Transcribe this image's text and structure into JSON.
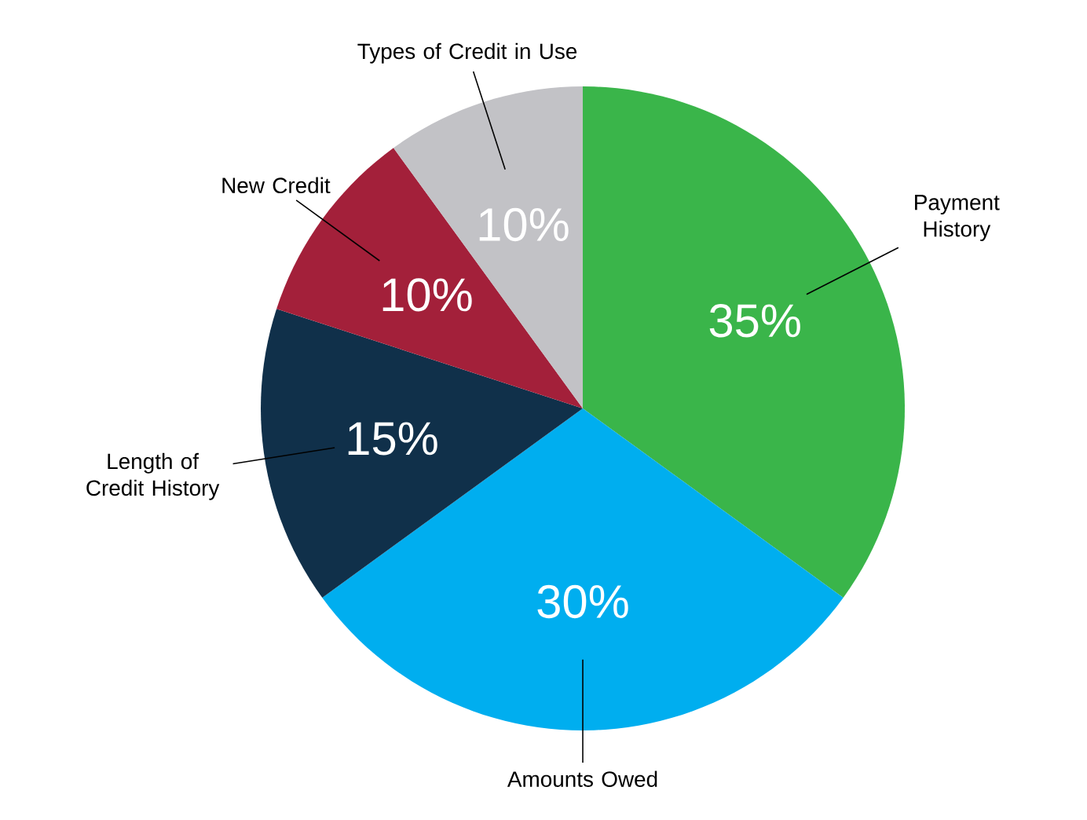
{
  "chart_data": {
    "type": "pie",
    "categories": [
      "Payment History",
      "Amounts Owed",
      "Length of Credit History",
      "New Credit",
      "Types of Credit in Use"
    ],
    "values": [
      35,
      30,
      15,
      10,
      10
    ],
    "colors": [
      "#3ab54a",
      "#00aeef",
      "#10304a",
      "#a3203a",
      "#c2c2c6"
    ],
    "value_labels": [
      "35%",
      "30%",
      "15%",
      "10%",
      "10%"
    ]
  }
}
